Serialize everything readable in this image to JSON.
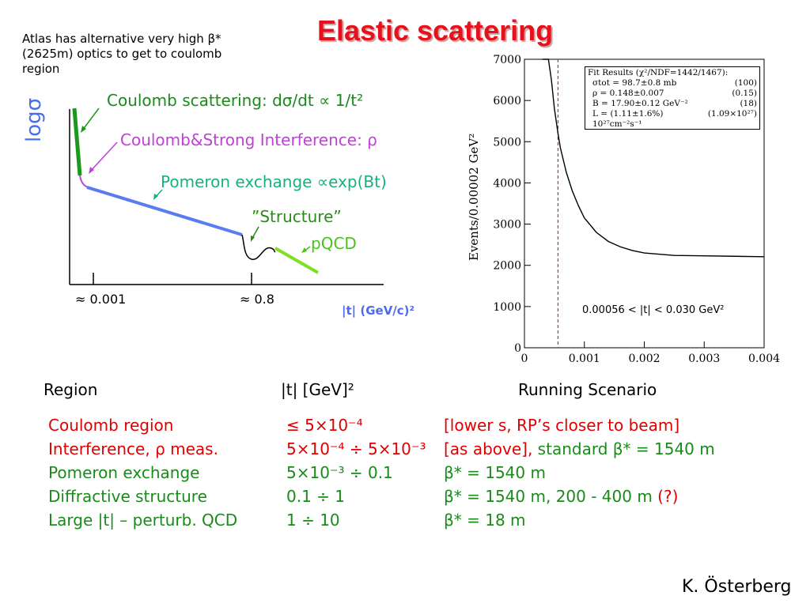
{
  "title": "Elastic scattering",
  "atlas_note": "Atlas has alternative very high β* (2625m) optics to get to coulomb region",
  "schematic": {
    "ylabel": "logσ",
    "coulomb": "Coulomb scattering: dσ/dt ∝ 1/t²",
    "interference": "Coulomb&Strong Interference: ρ",
    "pomeron": "Pomeron exchange ∝exp(Bt)",
    "structure": "”Structure”",
    "pqcd": "pQCD",
    "tick1": "≈ 0.001",
    "tick2": "≈ 0.8",
    "xlabel": "|t| (GeV/c)²",
    "colors": {
      "coulomb": "#1a9a1a",
      "interference": "#c040d8",
      "pomeron": "#5a7cf0",
      "pqcd": "#7ee020"
    }
  },
  "chart_data": {
    "type": "line",
    "ylabel": "Events/0.00002 GeV²",
    "xlim": [
      0,
      0.004
    ],
    "ylim": [
      0,
      7000
    ],
    "xticks": [
      "0",
      "0.001",
      "0.002",
      "0.003",
      "0.004"
    ],
    "yticks": [
      "0",
      "1000",
      "2000",
      "3000",
      "4000",
      "5000",
      "6000",
      "7000"
    ],
    "fit_range_text": "0.00056 < |t| < 0.030 GeV²",
    "cut_t": 0.00056,
    "curve": {
      "x": [
        0.0003,
        0.0004,
        0.00045,
        0.0005,
        0.00056,
        0.0006,
        0.0007,
        0.0008,
        0.0009,
        0.001,
        0.0012,
        0.0014,
        0.0016,
        0.0018,
        0.002,
        0.0025,
        0.003,
        0.0035,
        0.004
      ],
      "y": [
        7000,
        7000,
        6500,
        5800,
        5200,
        4850,
        4250,
        3800,
        3450,
        3150,
        2800,
        2580,
        2450,
        2360,
        2300,
        2240,
        2230,
        2220,
        2210
      ]
    },
    "fit_results": {
      "header": "Fit Results (χ²/NDF=1442/1467):",
      "rows": [
        {
          "label": "σtot = 98.7±0.8 mb",
          "value": "(100)"
        },
        {
          "label": "ρ = 0.148±0.007",
          "value": "(0.15)"
        },
        {
          "label": "B = 17.90±0.12 GeV⁻²",
          "value": "(18)"
        },
        {
          "label": "L = (1.11±1.6%) 10²⁷cm⁻²s⁻¹",
          "value": "(1.09×10²⁷)"
        }
      ]
    }
  },
  "table": {
    "headers": {
      "region": "Region",
      "t": "|t| [GeV]²",
      "running": "Running Scenario"
    },
    "rows": [
      {
        "region": "Coulomb region",
        "t": "≤ 5×10⁻⁴",
        "running": "[lower s, RP’s closer to beam]"
      },
      {
        "region": "Interference, ρ meas.",
        "t": "5×10⁻⁴ ÷ 5×10⁻³",
        "running_a": "[as above],",
        "running_b": " standard β* = 1540 m"
      },
      {
        "region": "Pomeron exchange",
        "t": "5×10⁻³ ÷ 0.1",
        "running": "β* = 1540 m"
      },
      {
        "region": "Diffractive structure",
        "t": "0.1 ÷ 1",
        "running_a": "β* = 1540 m, 200 - 400 m ",
        "running_b": "(?)"
      },
      {
        "region": "Large |t| – perturb. QCD",
        "t": "1 ÷ 10",
        "running": "β* = 18 m"
      }
    ]
  },
  "author": "K. Österberg"
}
